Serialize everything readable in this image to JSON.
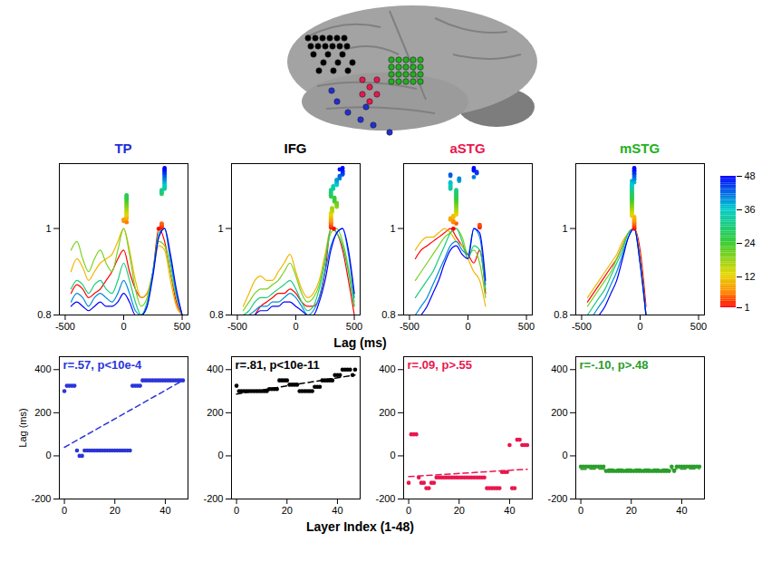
{
  "x_label_curves": "Lag (ms)",
  "x_label_scatter": "Layer Index (1-48)",
  "y_label_scatter": "Lag (ms)",
  "colorbar": {
    "range": [
      1,
      48
    ],
    "ticks": [
      1,
      12,
      24,
      36,
      48
    ]
  },
  "chart_data": [
    {
      "type": "line",
      "title": "TP",
      "color": "#1f2fd6",
      "x": [
        -450,
        -400,
        -350,
        -300,
        -250,
        -200,
        -150,
        -100,
        -50,
        0,
        50,
        100,
        150,
        200,
        250,
        300,
        350,
        400,
        450,
        500
      ],
      "series": [
        {
          "layer": 1,
          "values": [
            0.85,
            0.87,
            0.86,
            0.84,
            0.85,
            0.86,
            0.88,
            0.9,
            0.93,
            0.95,
            0.9,
            0.86,
            0.84,
            0.85,
            0.9,
            1.0,
            0.97,
            0.9,
            0.83,
            0.8
          ]
        },
        {
          "layer": 10,
          "values": [
            0.9,
            0.93,
            0.91,
            0.88,
            0.9,
            0.92,
            0.93,
            0.94,
            0.97,
            1.0,
            0.95,
            0.88,
            0.84,
            0.85,
            0.9,
            0.96,
            0.95,
            0.88,
            0.82,
            0.8
          ]
        },
        {
          "layer": 20,
          "values": [
            0.95,
            0.97,
            0.93,
            0.9,
            0.93,
            0.95,
            0.92,
            0.9,
            0.95,
            1.0,
            0.94,
            0.86,
            0.82,
            0.84,
            0.9,
            0.97,
            0.96,
            0.9,
            0.84,
            0.8
          ]
        },
        {
          "layer": 30,
          "values": [
            0.86,
            0.88,
            0.87,
            0.85,
            0.87,
            0.88,
            0.86,
            0.85,
            0.88,
            0.92,
            0.88,
            0.83,
            0.8,
            0.83,
            0.9,
            0.99,
            1.0,
            0.92,
            0.85,
            0.8
          ]
        },
        {
          "layer": 40,
          "values": [
            0.83,
            0.85,
            0.84,
            0.82,
            0.84,
            0.85,
            0.84,
            0.83,
            0.85,
            0.88,
            0.85,
            0.81,
            0.8,
            0.82,
            0.9,
            0.98,
            1.0,
            0.93,
            0.85,
            0.8
          ]
        },
        {
          "layer": 48,
          "values": [
            0.82,
            0.83,
            0.82,
            0.81,
            0.82,
            0.83,
            0.82,
            0.82,
            0.83,
            0.85,
            0.83,
            0.8,
            0.8,
            0.82,
            0.89,
            0.98,
            1.0,
            0.94,
            0.86,
            0.8
          ]
        }
      ],
      "xlim": [
        -550,
        550
      ],
      "xticks": [
        -500,
        0,
        500
      ],
      "ylim": [
        0.8,
        1.15
      ],
      "yticks": [
        0.8,
        1
      ]
    },
    {
      "type": "line",
      "title": "IFG",
      "color": "#000000",
      "x": [
        -450,
        -400,
        -350,
        -300,
        -250,
        -200,
        -150,
        -100,
        -50,
        0,
        50,
        100,
        150,
        200,
        250,
        300,
        350,
        400,
        450,
        500
      ],
      "series": [
        {
          "layer": 1,
          "values": [
            null,
            null,
            0.8,
            0.82,
            0.83,
            0.84,
            0.85,
            0.85,
            0.86,
            0.85,
            0.83,
            0.82,
            0.82,
            0.84,
            0.9,
            1.0,
            0.99,
            0.95,
            0.88,
            0.8
          ]
        },
        {
          "layer": 10,
          "values": [
            0.82,
            0.85,
            0.88,
            0.89,
            0.88,
            0.88,
            0.9,
            0.92,
            0.94,
            0.9,
            0.86,
            0.84,
            0.85,
            0.88,
            0.94,
            1.0,
            0.99,
            0.96,
            0.9,
            0.82
          ]
        },
        {
          "layer": 20,
          "values": [
            0.81,
            0.83,
            0.85,
            0.86,
            0.86,
            0.87,
            0.88,
            0.9,
            0.92,
            0.89,
            0.85,
            0.83,
            0.84,
            0.87,
            0.93,
            0.99,
            1.0,
            0.97,
            0.91,
            0.83
          ]
        },
        {
          "layer": 30,
          "values": [
            0.8,
            0.81,
            0.83,
            0.84,
            0.84,
            0.85,
            0.86,
            0.87,
            0.88,
            0.86,
            0.83,
            0.81,
            0.82,
            0.86,
            0.92,
            1.0,
            0.99,
            0.96,
            0.9,
            0.82
          ]
        },
        {
          "layer": 40,
          "values": [
            null,
            0.8,
            0.81,
            0.82,
            0.82,
            0.83,
            0.83,
            0.84,
            0.85,
            0.84,
            0.82,
            0.8,
            0.81,
            0.84,
            0.9,
            0.96,
            0.99,
            1.0,
            0.94,
            0.84
          ]
        },
        {
          "layer": 48,
          "values": [
            null,
            null,
            0.8,
            0.81,
            0.81,
            0.82,
            0.82,
            0.83,
            0.83,
            0.82,
            0.81,
            0.8,
            0.8,
            0.83,
            0.88,
            0.95,
            0.99,
            1.0,
            0.95,
            0.85
          ]
        }
      ],
      "xlim": [
        -550,
        550
      ],
      "xticks": [
        -500,
        0,
        500
      ],
      "ylim": [
        0.8,
        1.15
      ],
      "yticks": [
        0.8,
        1
      ]
    },
    {
      "type": "line",
      "title": "aSTG",
      "color": "#e8174f",
      "x": [
        -450,
        -400,
        -350,
        -300,
        -250,
        -200,
        -150,
        -100,
        -50,
        0,
        50,
        100,
        150,
        200,
        250,
        300,
        350,
        400,
        450,
        500
      ],
      "series": [
        {
          "layer": 1,
          "values": [
            0.93,
            0.95,
            0.96,
            0.97,
            0.98,
            0.99,
            1.0,
            0.98,
            0.96,
            0.94,
            0.92,
            0.95,
            0.85,
            null,
            null,
            null,
            null,
            null,
            null,
            null
          ]
        },
        {
          "layer": 10,
          "values": [
            0.95,
            0.97,
            0.98,
            0.98,
            0.99,
            1.0,
            0.99,
            0.97,
            0.96,
            0.93,
            0.9,
            0.88,
            0.82,
            null,
            null,
            null,
            null,
            null,
            null,
            null
          ]
        },
        {
          "layer": 20,
          "values": [
            0.88,
            0.9,
            0.92,
            0.94,
            0.96,
            0.98,
            0.99,
            1.0,
            0.98,
            0.94,
            0.95,
            0.92,
            0.84,
            null,
            null,
            null,
            null,
            null,
            null,
            null
          ]
        },
        {
          "layer": 30,
          "values": [
            0.84,
            0.86,
            0.88,
            0.9,
            0.93,
            0.96,
            0.99,
            1.0,
            0.97,
            0.93,
            0.96,
            0.95,
            0.86,
            null,
            null,
            null,
            null,
            null,
            null,
            null
          ]
        },
        {
          "layer": 40,
          "values": [
            0.8,
            0.82,
            0.84,
            0.87,
            0.9,
            0.93,
            0.96,
            0.97,
            0.95,
            0.94,
            1.0,
            0.98,
            0.87,
            null,
            null,
            null,
            null,
            null,
            null,
            null
          ]
        },
        {
          "layer": 48,
          "values": [
            null,
            0.8,
            0.82,
            0.85,
            0.88,
            0.92,
            0.95,
            0.96,
            0.94,
            0.93,
            1.0,
            0.99,
            0.88,
            null,
            null,
            null,
            null,
            null,
            null,
            null
          ]
        }
      ],
      "xlim": [
        -550,
        550
      ],
      "xticks": [
        -500,
        0,
        500
      ],
      "ylim": [
        0.8,
        1.15
      ],
      "yticks": [
        0.8,
        1
      ]
    },
    {
      "type": "line",
      "title": "mSTG",
      "color": "#22b022",
      "x": [
        -450,
        -400,
        -350,
        -300,
        -250,
        -200,
        -150,
        -100,
        -50,
        0,
        50,
        100,
        150,
        200,
        250,
        300,
        350,
        400,
        450,
        500
      ],
      "series": [
        {
          "layer": 1,
          "values": [
            0.83,
            0.85,
            0.87,
            0.89,
            0.91,
            0.93,
            0.96,
            0.99,
            1.0,
            0.95,
            0.82,
            null,
            null,
            null,
            null,
            null,
            null,
            null,
            null,
            null
          ]
        },
        {
          "layer": 10,
          "values": [
            0.84,
            0.86,
            0.88,
            0.9,
            0.92,
            0.94,
            0.97,
            0.99,
            1.0,
            0.93,
            0.8,
            null,
            null,
            null,
            null,
            null,
            null,
            null,
            null,
            null
          ]
        },
        {
          "layer": 20,
          "values": [
            0.82,
            0.84,
            0.86,
            0.88,
            0.9,
            0.93,
            0.96,
            0.99,
            1.0,
            0.93,
            0.8,
            null,
            null,
            null,
            null,
            null,
            null,
            null,
            null,
            null
          ]
        },
        {
          "layer": 30,
          "values": [
            0.8,
            0.82,
            0.84,
            0.86,
            0.89,
            0.92,
            0.95,
            0.99,
            1.0,
            0.92,
            0.8,
            null,
            null,
            null,
            null,
            null,
            null,
            null,
            null,
            null
          ]
        },
        {
          "layer": 40,
          "values": [
            null,
            0.8,
            0.82,
            0.84,
            0.87,
            0.9,
            0.94,
            0.98,
            1.0,
            0.92,
            0.8,
            null,
            null,
            null,
            null,
            null,
            null,
            null,
            null,
            null
          ]
        },
        {
          "layer": 48,
          "values": [
            null,
            null,
            0.8,
            0.82,
            0.85,
            0.88,
            0.93,
            0.98,
            1.0,
            0.92,
            0.8,
            null,
            null,
            null,
            null,
            null,
            null,
            null,
            null,
            null
          ]
        }
      ],
      "xlim": [
        -550,
        550
      ],
      "xticks": [
        -500,
        0,
        500
      ],
      "ylim": [
        0.8,
        1.15
      ],
      "yticks": [
        0.8,
        1
      ]
    },
    {
      "type": "scatter",
      "annotation": "r=.57, p<10e-4",
      "color": "#2b35d9",
      "marker": "circle",
      "line_style": "dashed",
      "x": [
        0,
        1,
        2,
        3,
        4,
        5,
        6,
        7,
        8,
        9,
        10,
        11,
        12,
        13,
        14,
        15,
        16,
        17,
        18,
        19,
        20,
        21,
        22,
        23,
        24,
        25,
        26,
        27,
        28,
        29,
        30,
        31,
        32,
        33,
        34,
        35,
        36,
        37,
        38,
        39,
        40,
        41,
        42,
        43,
        44,
        45,
        46,
        47
      ],
      "values": [
        300,
        325,
        325,
        325,
        325,
        25,
        0,
        0,
        25,
        25,
        25,
        25,
        25,
        25,
        25,
        25,
        25,
        25,
        25,
        25,
        25,
        25,
        25,
        25,
        25,
        25,
        25,
        325,
        325,
        325,
        325,
        350,
        350,
        350,
        350,
        350,
        350,
        350,
        350,
        350,
        350,
        350,
        350,
        350,
        350,
        350,
        350,
        350
      ],
      "xlim": [
        -2,
        49
      ],
      "xticks": [
        0,
        20,
        40
      ],
      "ylim": [
        -200,
        460
      ],
      "yticks": [
        -200,
        0,
        200,
        400
      ]
    },
    {
      "type": "scatter",
      "annotation": "r=.81, p<10e-11",
      "color": "#000000",
      "marker": "circle",
      "line_style": "dashed",
      "x": [
        0,
        1,
        2,
        3,
        4,
        5,
        6,
        7,
        8,
        9,
        10,
        11,
        12,
        13,
        14,
        15,
        16,
        17,
        18,
        19,
        20,
        21,
        22,
        23,
        24,
        25,
        26,
        27,
        28,
        29,
        30,
        31,
        32,
        33,
        34,
        35,
        36,
        37,
        38,
        39,
        40,
        41,
        42,
        43,
        44,
        45,
        46,
        47
      ],
      "values": [
        325,
        300,
        300,
        300,
        300,
        300,
        300,
        300,
        300,
        300,
        300,
        300,
        300,
        310,
        310,
        310,
        310,
        350,
        350,
        350,
        350,
        330,
        330,
        330,
        330,
        300,
        300,
        300,
        300,
        300,
        300,
        320,
        320,
        320,
        350,
        350,
        350,
        350,
        350,
        375,
        375,
        375,
        400,
        400,
        400,
        400,
        375,
        400
      ],
      "xlim": [
        -2,
        49
      ],
      "xticks": [
        0,
        20,
        40
      ],
      "ylim": [
        -200,
        460
      ],
      "yticks": [
        -200,
        0,
        200,
        400
      ]
    },
    {
      "type": "scatter",
      "annotation": "r=.09, p>.55",
      "color": "#e8174f",
      "marker": "circle",
      "line_style": "dashed",
      "x": [
        0,
        1,
        2,
        3,
        4,
        5,
        6,
        7,
        8,
        9,
        10,
        11,
        12,
        13,
        14,
        15,
        16,
        17,
        18,
        19,
        20,
        21,
        22,
        23,
        24,
        25,
        26,
        27,
        28,
        29,
        30,
        31,
        32,
        33,
        34,
        35,
        36,
        37,
        38,
        39,
        40,
        41,
        42,
        43,
        44,
        45,
        46,
        47
      ],
      "values": [
        -125,
        100,
        100,
        100,
        -100,
        -125,
        -125,
        -150,
        -150,
        -125,
        -125,
        -100,
        -100,
        -100,
        -100,
        -100,
        -100,
        -100,
        -100,
        -100,
        -100,
        -100,
        -100,
        -100,
        -100,
        -100,
        -100,
        -100,
        -100,
        -100,
        -100,
        -150,
        -150,
        -150,
        -150,
        -150,
        -150,
        -75,
        -75,
        -75,
        50,
        -150,
        -150,
        75,
        75,
        50,
        50,
        50
      ],
      "xlim": [
        -2,
        49
      ],
      "xticks": [
        0,
        20,
        40
      ],
      "ylim": [
        -200,
        460
      ],
      "yticks": [
        -200,
        0,
        200,
        400
      ]
    },
    {
      "type": "scatter",
      "annotation": "r=-.10, p>.48",
      "color": "#2a9d2a",
      "marker": "circle",
      "line_style": "dashed",
      "x": [
        0,
        1,
        2,
        3,
        4,
        5,
        6,
        7,
        8,
        9,
        10,
        11,
        12,
        13,
        14,
        15,
        16,
        17,
        18,
        19,
        20,
        21,
        22,
        23,
        24,
        25,
        26,
        27,
        28,
        29,
        30,
        31,
        32,
        33,
        34,
        35,
        36,
        37,
        38,
        39,
        40,
        41,
        42,
        43,
        44,
        45,
        46,
        47
      ],
      "values": [
        -50,
        -50,
        -50,
        -50,
        -50,
        -50,
        -50,
        -50,
        -50,
        -50,
        -70,
        -70,
        -70,
        -70,
        -70,
        -70,
        -70,
        -70,
        -70,
        -70,
        -70,
        -70,
        -70,
        -70,
        -70,
        -70,
        -70,
        -70,
        -70,
        -70,
        -70,
        -70,
        -70,
        -70,
        -70,
        -70,
        -50,
        -70,
        -50,
        -50,
        -50,
        -50,
        -50,
        -50,
        -50,
        -50,
        -50,
        -50
      ],
      "xlim": [
        -2,
        49
      ],
      "xticks": [
        0,
        20,
        40
      ],
      "ylim": [
        -200,
        460
      ],
      "yticks": [
        -200,
        0,
        200,
        400
      ]
    }
  ]
}
